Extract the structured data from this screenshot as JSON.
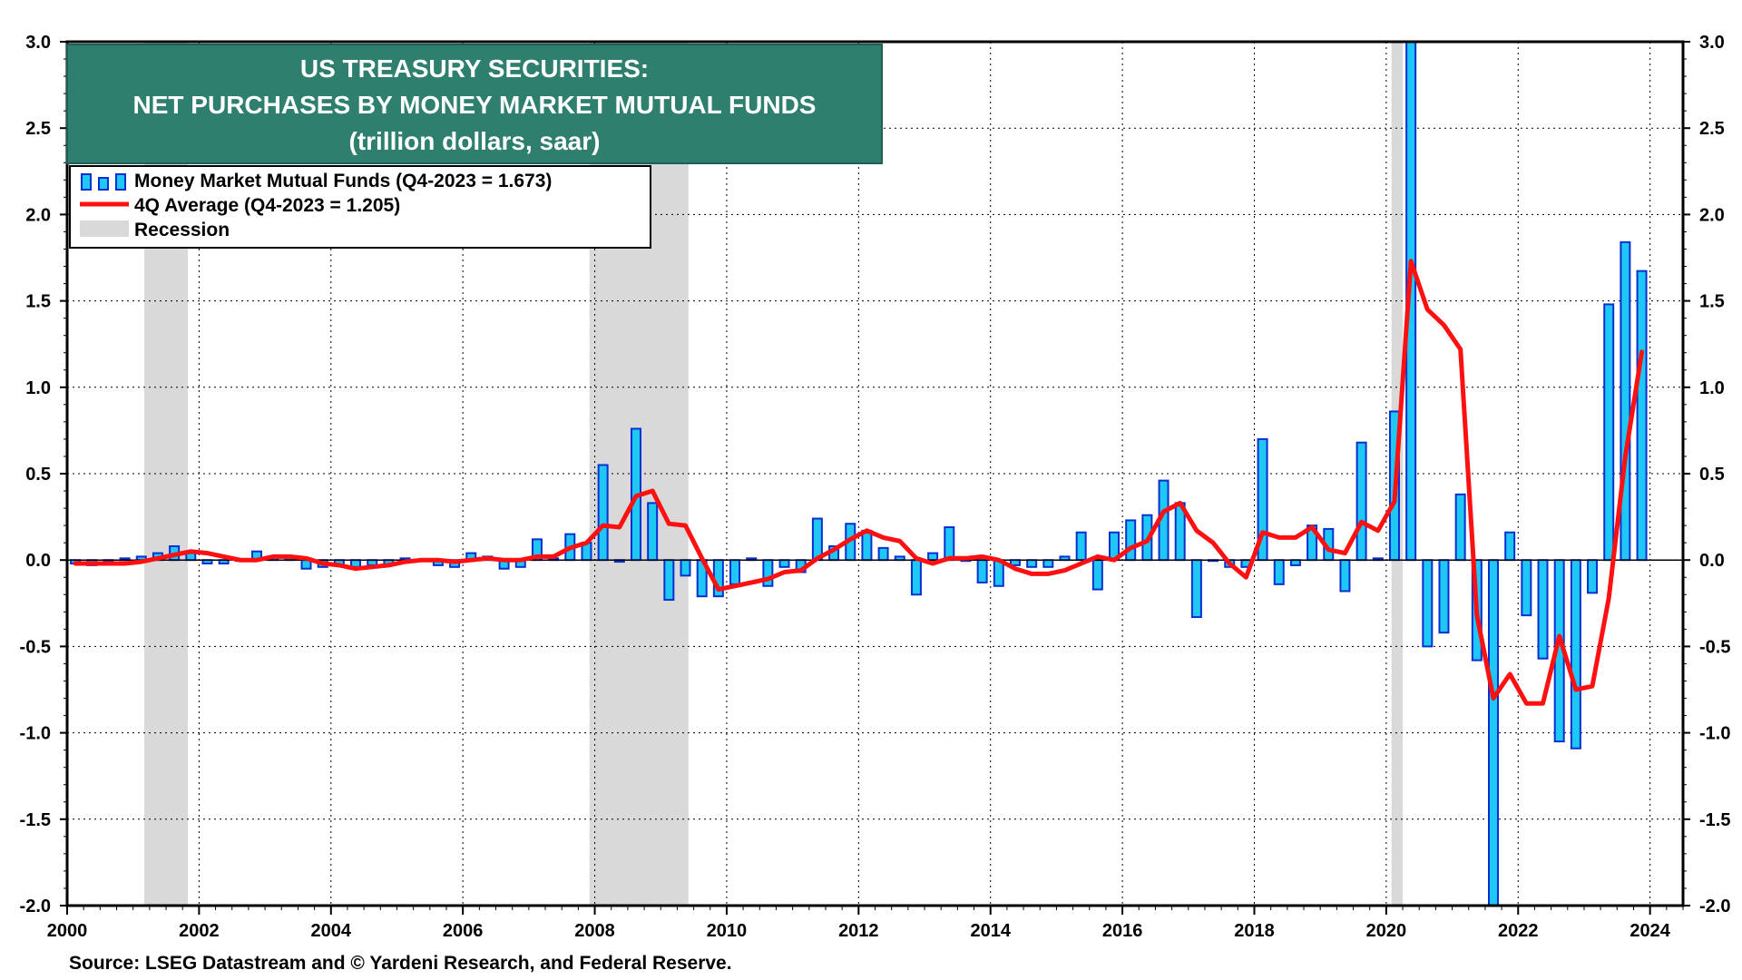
{
  "title": {
    "line1": "US TREASURY SECURITIES:",
    "line2": "NET PURCHASES BY MONEY MARKET MUTUAL FUNDS",
    "line3": "(trillion dollars, saar)"
  },
  "legend": {
    "bars_label": "Money Market Mutual Funds (Q4-2023 = 1.673)",
    "line_label": "4Q Average (Q4-2023 = 1.205)",
    "recession_label": "Recession"
  },
  "source": "Source: LSEG Datastream and © Yardeni Research, and Federal Reserve.",
  "colors": {
    "bar_fill": "#1fc7f5",
    "bar_edge": "#0a2fd1",
    "line": "#ff1010",
    "recession": "#d9d9d9",
    "title_bg": "#2f7f6f"
  },
  "chart_data": {
    "type": "bar",
    "x_start": "Q1-2000",
    "frequency": "quarterly",
    "x_ticks": [
      "2000",
      "2002",
      "2004",
      "2006",
      "2008",
      "2010",
      "2012",
      "2014",
      "2016",
      "2018",
      "2020",
      "2022",
      "2024"
    ],
    "y_ticks": [
      "3.0",
      "2.5",
      "2.0",
      "1.5",
      "1.0",
      "0.5",
      "0.0",
      "-0.5",
      "-1.0",
      "-1.5",
      "-2.0"
    ],
    "ylim": [
      -2.0,
      3.0
    ],
    "xlim": [
      2000.0,
      2024.5
    ],
    "grid": true,
    "legend_position": "top-left",
    "recessions": [
      [
        2001.17,
        2001.83
      ],
      [
        2007.92,
        2009.42
      ],
      [
        2020.08,
        2020.25
      ]
    ],
    "series": [
      {
        "name": "Money Market Mutual Funds",
        "kind": "bar",
        "values": [
          -0.02,
          -0.03,
          -0.01,
          0.01,
          0.02,
          0.04,
          0.08,
          0.04,
          -0.02,
          -0.02,
          0.0,
          0.05,
          0.02,
          0.02,
          -0.05,
          -0.04,
          -0.03,
          -0.04,
          -0.03,
          -0.03,
          0.01,
          0.0,
          -0.03,
          -0.04,
          0.04,
          0.02,
          -0.05,
          -0.04,
          0.12,
          0.01,
          0.15,
          0.1,
          0.55,
          -0.01,
          0.76,
          0.33,
          -0.23,
          -0.09,
          -0.21,
          -0.21,
          -0.14,
          0.01,
          -0.15,
          -0.04,
          -0.07,
          0.24,
          0.08,
          0.21,
          0.17,
          0.07,
          0.02,
          -0.2,
          0.04,
          0.19,
          0.0,
          -0.13,
          -0.15,
          -0.03,
          -0.04,
          -0.04,
          0.02,
          0.16,
          -0.17,
          0.16,
          0.23,
          0.26,
          0.46,
          0.33,
          -0.33,
          0.0,
          -0.04,
          -0.04,
          0.7,
          -0.14,
          -0.03,
          0.2,
          0.18,
          -0.18,
          0.68,
          0.01,
          0.86,
          3.0,
          -0.5,
          -0.42,
          0.38,
          -0.58,
          -2.0,
          0.16,
          -0.32,
          -0.57,
          -1.05,
          -1.09,
          -0.19,
          1.48,
          1.84,
          1.673
        ]
      },
      {
        "name": "4Q Average",
        "kind": "line",
        "values": [
          -0.02,
          -0.02,
          -0.02,
          -0.02,
          -0.01,
          0.01,
          0.03,
          0.05,
          0.04,
          0.02,
          0.0,
          0.0,
          0.02,
          0.02,
          0.01,
          -0.02,
          -0.03,
          -0.05,
          -0.04,
          -0.03,
          -0.01,
          0.0,
          0.0,
          -0.01,
          0.0,
          0.01,
          0.0,
          0.0,
          0.02,
          0.02,
          0.07,
          0.1,
          0.2,
          0.19,
          0.37,
          0.4,
          0.21,
          0.2,
          0.01,
          -0.17,
          -0.15,
          -0.13,
          -0.11,
          -0.07,
          -0.06,
          0.01,
          0.06,
          0.12,
          0.17,
          0.13,
          0.11,
          0.01,
          -0.02,
          0.01,
          0.01,
          0.02,
          0.0,
          -0.05,
          -0.08,
          -0.08,
          -0.06,
          -0.02,
          0.02,
          0.0,
          0.07,
          0.11,
          0.28,
          0.33,
          0.17,
          0.1,
          -0.02,
          -0.1,
          0.16,
          0.13,
          0.13,
          0.19,
          0.06,
          0.04,
          0.22,
          0.17,
          0.34,
          1.73,
          1.45,
          1.36,
          1.22,
          -0.32,
          -0.8,
          -0.66,
          -0.83,
          -0.83,
          -0.44,
          -0.75,
          -0.73,
          -0.22,
          0.6,
          1.205
        ]
      }
    ]
  }
}
